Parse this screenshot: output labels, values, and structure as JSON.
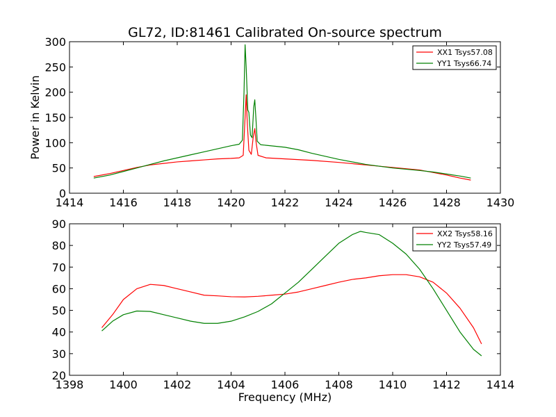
{
  "figure": {
    "title": "GL72, ID:81461 Calibrated On-source spectrum",
    "ylabel": "Power in Kelvin",
    "xlabel": "Frequency (MHz)"
  },
  "chart_data": [
    {
      "type": "line",
      "title": "GL72, ID:81461 Calibrated On-source spectrum",
      "xlabel": "",
      "ylabel": "Power in Kelvin",
      "xlim": [
        1414,
        1430
      ],
      "ylim": [
        0,
        300
      ],
      "xticks": [
        1414,
        1416,
        1418,
        1420,
        1422,
        1424,
        1426,
        1428,
        1430
      ],
      "yticks": [
        0,
        50,
        100,
        150,
        200,
        250,
        300
      ],
      "legend_position": "top-right",
      "grid": false,
      "series": [
        {
          "name": "XX1 Tsys57.08",
          "color": "#ff0000",
          "points": [
            [
              1414.9,
              33
            ],
            [
              1415.5,
              39
            ],
            [
              1416.0,
              45
            ],
            [
              1416.5,
              51
            ],
            [
              1417.0,
              56
            ],
            [
              1417.5,
              59
            ],
            [
              1418.0,
              62
            ],
            [
              1418.5,
              64
            ],
            [
              1419.0,
              66
            ],
            [
              1419.5,
              68
            ],
            [
              1420.0,
              69
            ],
            [
              1420.3,
              70
            ],
            [
              1420.45,
              75
            ],
            [
              1420.52,
              150
            ],
            [
              1420.56,
              195
            ],
            [
              1420.6,
              140
            ],
            [
              1420.66,
              85
            ],
            [
              1420.75,
              77
            ],
            [
              1420.82,
              110
            ],
            [
              1420.88,
              128
            ],
            [
              1420.93,
              100
            ],
            [
              1421.0,
              75
            ],
            [
              1421.3,
              70
            ],
            [
              1422.0,
              68
            ],
            [
              1423.0,
              65
            ],
            [
              1424.0,
              61
            ],
            [
              1425.0,
              56
            ],
            [
              1426.0,
              51
            ],
            [
              1427.0,
              46
            ],
            [
              1427.5,
              41
            ],
            [
              1428.0,
              36
            ],
            [
              1428.5,
              30
            ],
            [
              1428.9,
              26
            ]
          ]
        },
        {
          "name": "YY1 Tsys66.74",
          "color": "#008000",
          "points": [
            [
              1414.9,
              30
            ],
            [
              1415.5,
              36
            ],
            [
              1416.0,
              43
            ],
            [
              1416.5,
              50
            ],
            [
              1417.0,
              57
            ],
            [
              1417.5,
              64
            ],
            [
              1418.0,
              70
            ],
            [
              1418.5,
              76
            ],
            [
              1419.0,
              82
            ],
            [
              1419.5,
              88
            ],
            [
              1420.0,
              94
            ],
            [
              1420.3,
              97
            ],
            [
              1420.42,
              105
            ],
            [
              1420.48,
              200
            ],
            [
              1420.52,
              294
            ],
            [
              1420.56,
              250
            ],
            [
              1420.62,
              165
            ],
            [
              1420.66,
              160
            ],
            [
              1420.72,
              115
            ],
            [
              1420.78,
              110
            ],
            [
              1420.84,
              170
            ],
            [
              1420.88,
              185
            ],
            [
              1420.92,
              150
            ],
            [
              1420.97,
              103
            ],
            [
              1421.1,
              96
            ],
            [
              1422.0,
              91
            ],
            [
              1422.5,
              86
            ],
            [
              1423.0,
              79
            ],
            [
              1424.0,
              67
            ],
            [
              1425.0,
              57
            ],
            [
              1426.0,
              50
            ],
            [
              1427.0,
              45
            ],
            [
              1427.5,
              42
            ],
            [
              1428.0,
              38
            ],
            [
              1428.5,
              34
            ],
            [
              1428.9,
              30
            ]
          ]
        }
      ]
    },
    {
      "type": "line",
      "title": "",
      "xlabel": "Frequency (MHz)",
      "ylabel": "",
      "xlim": [
        1398,
        1414
      ],
      "ylim": [
        20,
        90
      ],
      "xticks": [
        1398,
        1400,
        1402,
        1404,
        1406,
        1408,
        1410,
        1412,
        1414
      ],
      "yticks": [
        20,
        30,
        40,
        50,
        60,
        70,
        80,
        90
      ],
      "legend_position": "top-right",
      "grid": false,
      "series": [
        {
          "name": "XX2 Tsys58.16",
          "color": "#ff0000",
          "points": [
            [
              1399.2,
              42
            ],
            [
              1399.6,
              48
            ],
            [
              1400.0,
              55
            ],
            [
              1400.5,
              60
            ],
            [
              1401.0,
              62
            ],
            [
              1401.5,
              61.5
            ],
            [
              1402.0,
              60
            ],
            [
              1402.5,
              58.5
            ],
            [
              1403.0,
              57
            ],
            [
              1403.5,
              56.7
            ],
            [
              1404.0,
              56.3
            ],
            [
              1404.5,
              56.2
            ],
            [
              1405.0,
              56.5
            ],
            [
              1405.5,
              57
            ],
            [
              1406.0,
              57.5
            ],
            [
              1406.5,
              58.5
            ],
            [
              1407.0,
              60
            ],
            [
              1407.5,
              61.5
            ],
            [
              1408.0,
              63
            ],
            [
              1408.5,
              64.3
            ],
            [
              1409.0,
              65
            ],
            [
              1409.5,
              66
            ],
            [
              1410.0,
              66.5
            ],
            [
              1410.5,
              66.5
            ],
            [
              1411.0,
              65.5
            ],
            [
              1411.5,
              63
            ],
            [
              1412.0,
              58
            ],
            [
              1412.5,
              51
            ],
            [
              1413.0,
              42
            ],
            [
              1413.3,
              34.5
            ]
          ]
        },
        {
          "name": "YY2 Tsys57.49",
          "color": "#008000",
          "points": [
            [
              1399.2,
              40.5
            ],
            [
              1399.6,
              45
            ],
            [
              1400.0,
              48
            ],
            [
              1400.5,
              49.7
            ],
            [
              1401.0,
              49.5
            ],
            [
              1401.5,
              48
            ],
            [
              1402.0,
              46.5
            ],
            [
              1402.5,
              45
            ],
            [
              1403.0,
              44
            ],
            [
              1403.5,
              44
            ],
            [
              1404.0,
              45
            ],
            [
              1404.5,
              47
            ],
            [
              1405.0,
              49.5
            ],
            [
              1405.5,
              53
            ],
            [
              1406.0,
              58
            ],
            [
              1406.5,
              63
            ],
            [
              1407.0,
              69
            ],
            [
              1407.5,
              75
            ],
            [
              1408.0,
              81
            ],
            [
              1408.5,
              85
            ],
            [
              1408.8,
              86.5
            ],
            [
              1409.0,
              86
            ],
            [
              1409.5,
              85
            ],
            [
              1410.0,
              81
            ],
            [
              1410.5,
              76
            ],
            [
              1411.0,
              69
            ],
            [
              1411.5,
              60
            ],
            [
              1412.0,
              50
            ],
            [
              1412.5,
              40
            ],
            [
              1413.0,
              32
            ],
            [
              1413.3,
              29
            ]
          ]
        }
      ]
    }
  ]
}
